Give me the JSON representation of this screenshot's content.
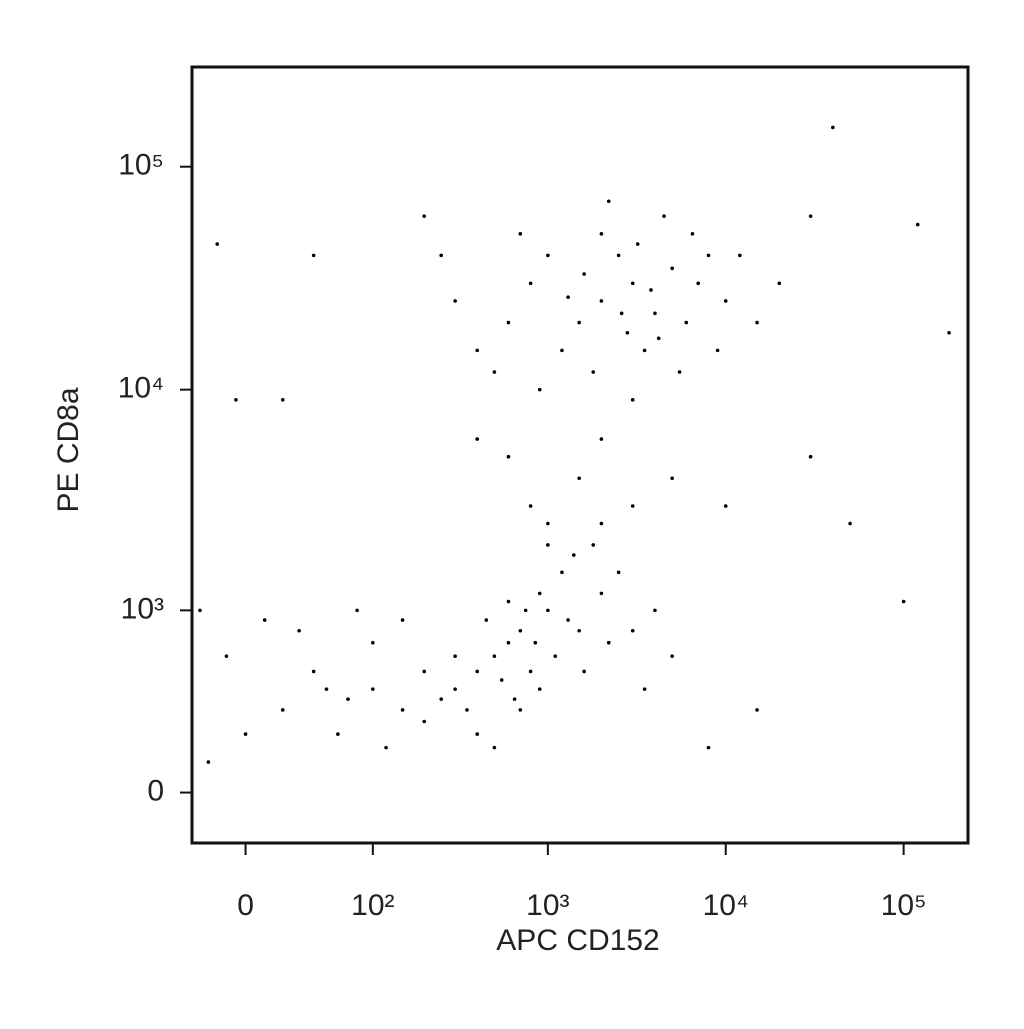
{
  "chart_data": {
    "type": "scatter",
    "x_label": "APC CD152",
    "y_label": "PE CD8a",
    "xscale": {
      "type": "asinh",
      "width": 40
    },
    "yscale": {
      "type": "asinh",
      "width": 312
    },
    "xlim": [
      -30,
      230000
    ],
    "ylim": [
      -170,
      280000
    ],
    "xticks": [
      0,
      {
        "value": 100,
        "label": "10²"
      },
      {
        "value": 1000,
        "label": "10³"
      },
      {
        "value": 10000,
        "label": "10⁴"
      },
      {
        "value": 100000,
        "label": "10⁵"
      }
    ],
    "yticks": [
      0,
      {
        "value": 1000,
        "label": "10³"
      },
      {
        "value": 10000,
        "label": "10⁴"
      },
      {
        "value": 100000,
        "label": "10⁵"
      }
    ],
    "color": "#000000",
    "x": [
      2000,
      3000,
      1500,
      4000,
      2500,
      5000,
      1200,
      800,
      600,
      3500,
      7000,
      10000,
      2000,
      4500,
      1800,
      900,
      300,
      400,
      6000,
      2800,
      3200,
      1000,
      5500,
      8000,
      15000,
      20000,
      700,
      2200,
      3800,
      1600,
      2600,
      4200,
      500,
      1300,
      6500,
      9000,
      12000,
      250,
      3000,
      2000,
      1500,
      800,
      3000,
      600,
      5000,
      2000,
      1000,
      400,
      10000,
      30000,
      500,
      700,
      400,
      300,
      1000,
      600,
      800,
      1200,
      900,
      350,
      250,
      200,
      1500,
      2000,
      450,
      550,
      650,
      750,
      850,
      1100,
      1300,
      1800,
      2500,
      3000,
      400,
      300,
      200,
      150,
      100,
      700,
      500,
      900,
      1600,
      2200,
      4000,
      5000,
      3500,
      1000,
      1400,
      600,
      50,
      20,
      0,
      -10,
      30,
      80,
      60,
      10,
      -20,
      100,
      40,
      120,
      150,
      70,
      40000,
      120000,
      180000,
      100000,
      50000,
      30000,
      -15,
      -5,
      20,
      200,
      40,
      -25,
      15000,
      8000
    ],
    "y": [
      25000,
      30000,
      20000,
      22000,
      40000,
      35000,
      15000,
      30000,
      20000,
      15000,
      30000,
      25000,
      50000,
      60000,
      12000,
      10000,
      25000,
      15000,
      20000,
      18000,
      45000,
      40000,
      12000,
      40000,
      20000,
      30000,
      50000,
      70000,
      28000,
      33000,
      22000,
      17000,
      12000,
      26000,
      50000,
      15000,
      40000,
      40000,
      9000,
      6000,
      4000,
      3000,
      3000,
      5000,
      4000,
      2500,
      2000,
      6000,
      3000,
      5000,
      600,
      800,
      500,
      400,
      1000,
      700,
      500,
      1500,
      1200,
      300,
      350,
      250,
      800,
      1200,
      900,
      450,
      350,
      1000,
      700,
      600,
      900,
      2000,
      1500,
      800,
      200,
      600,
      500,
      300,
      400,
      300,
      150,
      400,
      500,
      700,
      1000,
      600,
      400,
      2500,
      1800,
      1100,
      400,
      300,
      200,
      600,
      800,
      1000,
      200,
      900,
      100,
      700,
      500,
      150,
      900,
      350,
      150000,
      55000,
      18000,
      1100,
      2500,
      60000,
      45000,
      9000,
      9000,
      60000,
      40000,
      1000,
      300,
      150
    ]
  }
}
